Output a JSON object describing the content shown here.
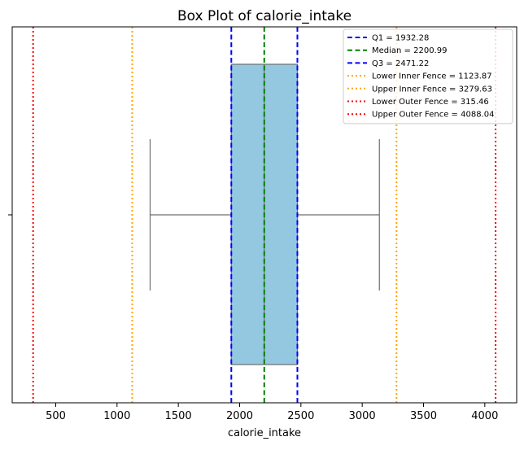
{
  "chart_data": {
    "type": "box",
    "title": "Box Plot of calorie_intake",
    "xlabel": "calorie_intake",
    "ylabel": "",
    "xlim": [
      145,
      4260
    ],
    "xticks": [
      500,
      1000,
      1500,
      2000,
      2500,
      3000,
      3500,
      4000
    ],
    "xtick_labels": [
      "500",
      "1000",
      "1500",
      "2000",
      "2500",
      "3000",
      "3500",
      "4000"
    ],
    "grid": false,
    "legend_position": "top-right",
    "box": {
      "whisker_low": 1270,
      "q1": 1932.28,
      "median": 2200.99,
      "q3": 2471.22,
      "whisker_high": 3140,
      "fill": "#93c8e0",
      "edge": "#6e6e6e"
    },
    "reference_lines": [
      {
        "label": "Q1 = 1932.28",
        "value": 1932.28,
        "color": "#0000ff",
        "style": "dashed"
      },
      {
        "label": "Median = 2200.99",
        "value": 2200.99,
        "color": "#008000",
        "style": "dashed"
      },
      {
        "label": "Q3 = 2471.22",
        "value": 2471.22,
        "color": "#0000ff",
        "style": "dashed"
      },
      {
        "label": "Lower Inner Fence = 1123.87",
        "value": 1123.87,
        "color": "#ffa500",
        "style": "dotted"
      },
      {
        "label": "Upper Inner Fence = 3279.63",
        "value": 3279.63,
        "color": "#ffa500",
        "style": "dotted"
      },
      {
        "label": "Lower Outer Fence = 315.46",
        "value": 315.46,
        "color": "#ff0000",
        "style": "dotted"
      },
      {
        "label": "Upper Outer Fence = 4088.04",
        "value": 4088.04,
        "color": "#ff0000",
        "style": "dotted"
      }
    ]
  }
}
